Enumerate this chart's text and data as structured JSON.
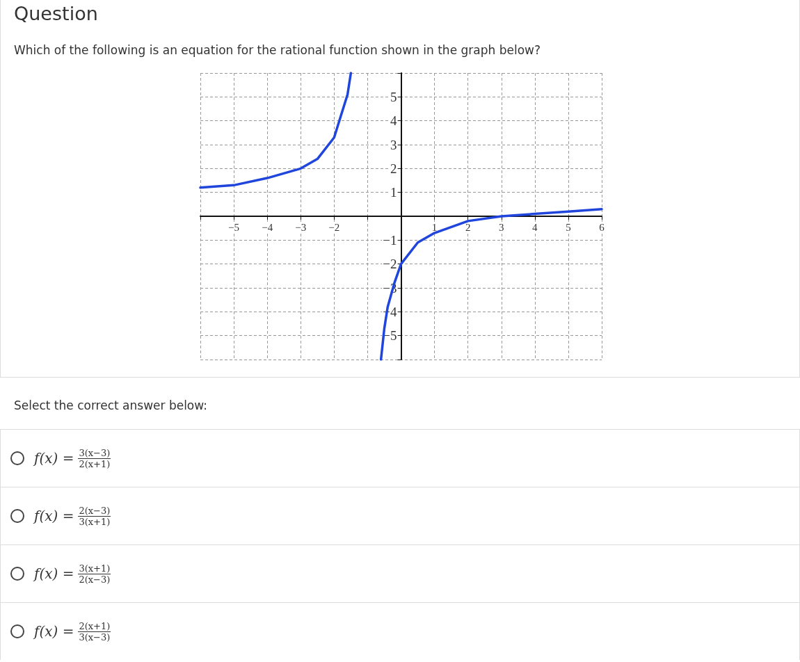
{
  "chart_data": {
    "type": "line",
    "title": "Question",
    "subtitle": "Which of the following is an equation for the rational function shown in the graph below?",
    "annotations": [
      "Select the correct answer below:",
      "f(x) =",
      "3(x−3)",
      "2(x+1)",
      "f(x) =",
      "2(x−3)",
      "3(x+1)",
      "f(x) =",
      "3(x+1)",
      "2(x−3)",
      "f(x) =",
      "2(x+1)",
      "3(x−3)"
    ],
    "series": [
      {
        "color": "#1f45dc",
        "x": [
          -6,
          -5,
          -4,
          -3,
          -2.5,
          -2,
          -1.8,
          -1.6,
          -1.5
        ],
        "values": [
          1.2,
          1.3,
          1.6,
          2.0,
          2.4,
          3.3,
          4.2,
          5.1,
          6
        ]
      },
      {
        "color": "#1f45dc",
        "x": [
          -0.6,
          -0.5,
          -0.4,
          -0.2,
          0,
          0.5,
          1,
          2,
          3,
          4,
          5,
          6
        ],
        "values": [
          -6,
          -4.7,
          -3.8,
          -2.8,
          -2,
          -1.1,
          -0.7,
          -0.2,
          0,
          0.1,
          0.2,
          0.3
        ]
      }
    ],
    "xlim": [
      -6,
      6
    ],
    "ylim": [
      -6,
      6
    ],
    "xticks": [
      {
        "value": -6,
        "label": null
      },
      -5,
      -4,
      -3,
      -2,
      {
        "value": -1,
        "label": null
      },
      {
        "value": 0,
        "label": null
      },
      1,
      2,
      3,
      4,
      5,
      6
    ],
    "yticks": [
      {
        "value": -6,
        "label": null
      },
      -5,
      -4,
      -3,
      -2,
      -1,
      {
        "value": 0,
        "label": null
      },
      1,
      2,
      3,
      4,
      5,
      {
        "value": 6,
        "label": null
      }
    ],
    "grid": true,
    "marker": "none",
    "line_style": "solid"
  }
}
